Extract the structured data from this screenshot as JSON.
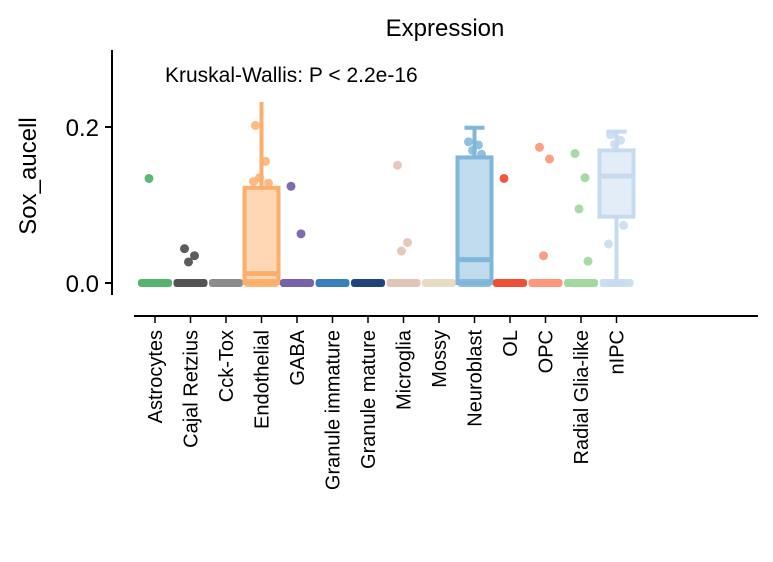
{
  "chart_data": {
    "type": "box",
    "title": "Expression",
    "annotation": "Kruskal-Wallis: P < 2.2e-16",
    "xlabel": "",
    "ylabel": "Sox_aucell",
    "ylim": [
      -0.04,
      0.3
    ],
    "yticks": [
      0.0,
      0.2
    ],
    "ytick_labels": [
      "0.0",
      "0.2"
    ],
    "grid": false,
    "categories": [
      "Astrocytes",
      "Cajal Retzius",
      "Cck-Tox",
      "Endothelial",
      "GABA",
      "Granule immature",
      "Granule mature",
      "Microglia",
      "Mossy",
      "Neuroblast",
      "OL",
      "OPC",
      "Radial Glia-like",
      "nIPC"
    ],
    "colors": [
      "#41ab5d",
      "#404040",
      "#7f7f7f",
      "#fdae6b",
      "#6a51a3",
      "#2171b5",
      "#08306b",
      "#e0bfb0",
      "#e6d8bb",
      "#7fb6da",
      "#f03b20",
      "#fc8d6a",
      "#98d594",
      "#c6dbef"
    ],
    "series": [
      {
        "name": "Astrocytes",
        "box": {
          "q1": 0,
          "median": 0,
          "q3": 0,
          "whisker_low": 0,
          "whisker_high": 0
        },
        "outliers": [
          0.134
        ]
      },
      {
        "name": "Cajal Retzius",
        "box": {
          "q1": 0,
          "median": 0,
          "q3": 0,
          "whisker_low": 0,
          "whisker_high": 0
        },
        "outliers": [
          0.044,
          0.035,
          0.027
        ]
      },
      {
        "name": "Cck-Tox",
        "box": {
          "q1": 0,
          "median": 0,
          "q3": 0,
          "whisker_low": 0,
          "whisker_high": 0
        },
        "outliers": []
      },
      {
        "name": "Endothelial",
        "box": {
          "q1": 0,
          "median": 0.012,
          "q3": 0.122,
          "whisker_low": 0,
          "whisker_high": 0.232
        },
        "outliers": [
          0.202,
          0.156,
          0.135,
          0.128,
          0.13
        ]
      },
      {
        "name": "GABA",
        "box": {
          "q1": 0,
          "median": 0,
          "q3": 0,
          "whisker_low": 0,
          "whisker_high": 0
        },
        "outliers": [
          0.124,
          0.063
        ]
      },
      {
        "name": "Granule immature",
        "box": {
          "q1": 0,
          "median": 0,
          "q3": 0,
          "whisker_low": 0,
          "whisker_high": 0
        },
        "outliers": []
      },
      {
        "name": "Granule mature",
        "box": {
          "q1": 0,
          "median": 0,
          "q3": 0,
          "whisker_low": 0,
          "whisker_high": 0
        },
        "outliers": []
      },
      {
        "name": "Microglia",
        "box": {
          "q1": 0,
          "median": 0,
          "q3": 0,
          "whisker_low": 0,
          "whisker_high": 0
        },
        "outliers": [
          0.151,
          0.052,
          0.041
        ]
      },
      {
        "name": "Mossy",
        "box": {
          "q1": 0,
          "median": 0,
          "q3": 0,
          "whisker_low": 0,
          "whisker_high": 0
        },
        "outliers": []
      },
      {
        "name": "Neuroblast",
        "box": {
          "q1": 0,
          "median": 0.03,
          "q3": 0.161,
          "whisker_low": 0,
          "whisker_high": 0.199
        },
        "outliers": [
          0.181,
          0.177,
          0.17,
          0.165
        ]
      },
      {
        "name": "OL",
        "box": {
          "q1": 0,
          "median": 0,
          "q3": 0,
          "whisker_low": 0,
          "whisker_high": 0
        },
        "outliers": [
          0.134
        ]
      },
      {
        "name": "OPC",
        "box": {
          "q1": 0,
          "median": 0,
          "q3": 0,
          "whisker_low": 0,
          "whisker_high": 0
        },
        "outliers": [
          0.174,
          0.159,
          0.035
        ]
      },
      {
        "name": "Radial Glia-like",
        "box": {
          "q1": 0,
          "median": 0,
          "q3": 0,
          "whisker_low": 0,
          "whisker_high": 0
        },
        "outliers": [
          0.166,
          0.135,
          0.095,
          0.028
        ]
      },
      {
        "name": "nIPC",
        "box": {
          "q1": 0.085,
          "median": 0.137,
          "q3": 0.17,
          "whisker_low": 0,
          "whisker_high": 0.194
        },
        "outliers": [
          0.19,
          0.183,
          0.178,
          0.074,
          0.05
        ]
      }
    ]
  }
}
